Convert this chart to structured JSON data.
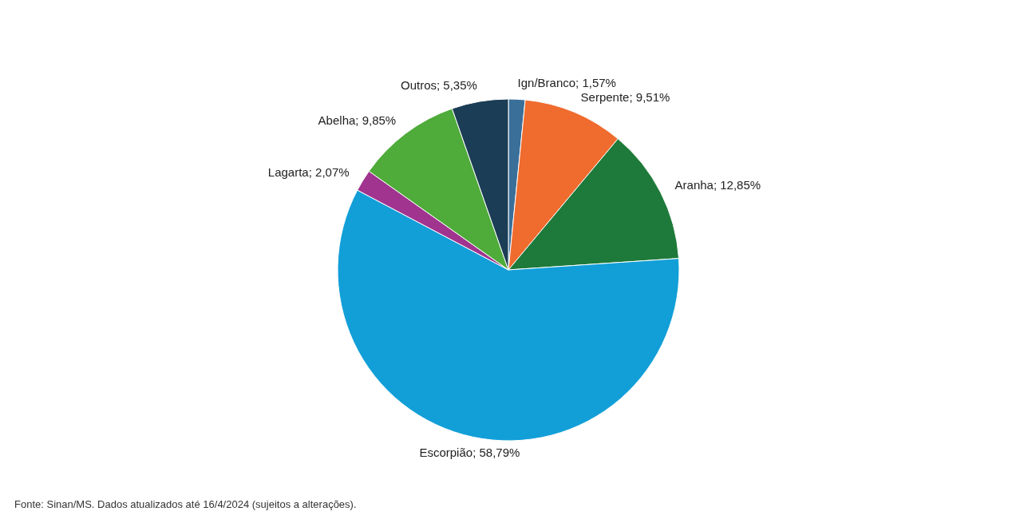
{
  "chart_data": {
    "type": "pie",
    "categories": [
      "Ign/Branco",
      "Serpente",
      "Aranha",
      "Escorpião",
      "Lagarta",
      "Abelha",
      "Outros"
    ],
    "values": [
      1.57,
      9.51,
      12.85,
      58.79,
      2.07,
      9.85,
      5.35
    ],
    "value_labels": [
      "1,57%",
      "9,51%",
      "12,85%",
      "58,79%",
      "2,07%",
      "9,85%",
      "5,35%"
    ],
    "colors": [
      "#3a6f99",
      "#ef6b2e",
      "#1e7a3a",
      "#129fd8",
      "#a0348f",
      "#4fab3a",
      "#1b3d55"
    ],
    "annotations": [
      "Fonte: Sinan/MS. Dados atualizados até 16/4/2024 (sujeitos a alterações)."
    ]
  }
}
